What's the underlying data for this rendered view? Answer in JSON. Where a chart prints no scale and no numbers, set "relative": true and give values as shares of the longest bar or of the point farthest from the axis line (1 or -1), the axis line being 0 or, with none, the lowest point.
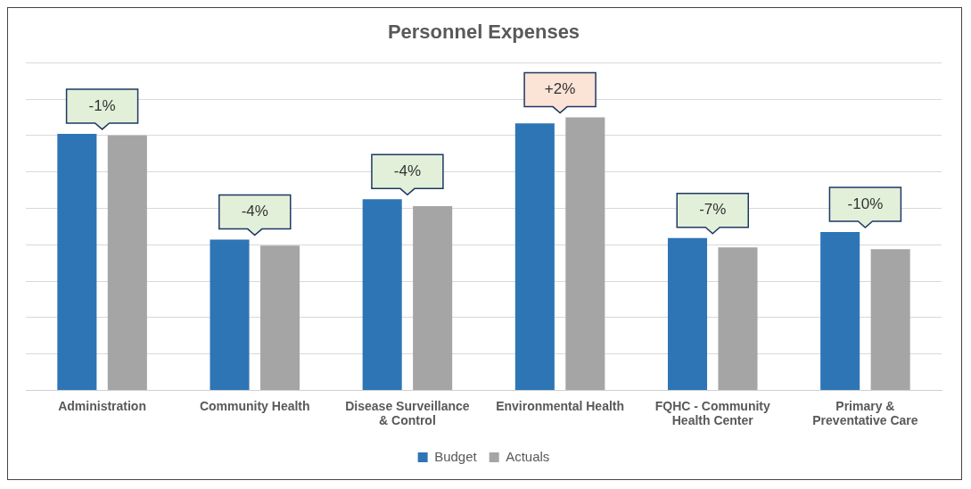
{
  "chart_data": {
    "type": "bar",
    "title": "Personnel Expenses",
    "relative": true,
    "grid": "y",
    "legend": "bottom",
    "categories": [
      "Administration",
      "Community Health",
      "Disease Surveillance & Control",
      "Environmental Health",
      "FQHC - Community Health Center",
      "Primary & Preventative Care"
    ],
    "series": [
      {
        "name": "Budget",
        "color": "#2e75b6",
        "values": [
          0.94,
          0.552,
          0.7,
          0.978,
          0.558,
          0.58
        ]
      },
      {
        "name": "Actuals",
        "color": "#a5a5a5",
        "values": [
          0.934,
          0.53,
          0.675,
          1,
          0.524,
          0.517
        ]
      }
    ],
    "annotations": [
      "-1%",
      "-4%",
      "-4%",
      "+2%",
      "-7%",
      "-10%"
    ]
  }
}
